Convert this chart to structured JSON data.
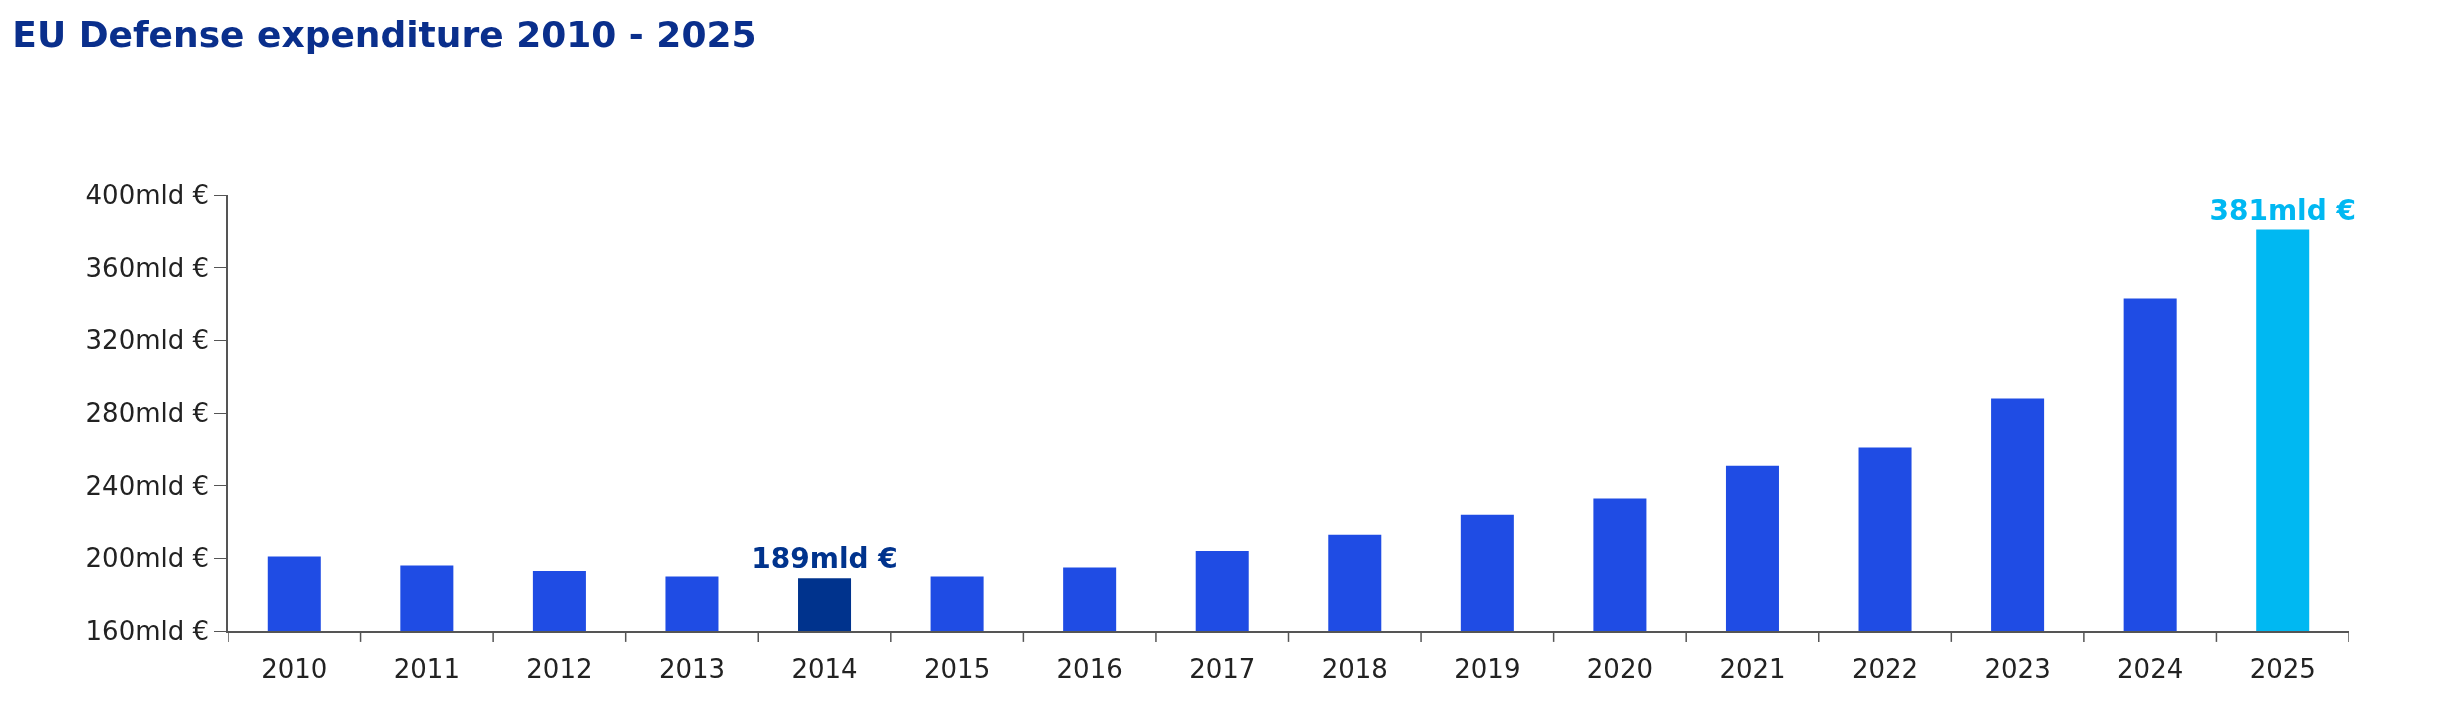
{
  "chart_data": {
    "type": "bar",
    "title": "EU Defense expenditure 2010 - 2025",
    "categories": [
      "2010",
      "2011",
      "2012",
      "2013",
      "2014",
      "2015",
      "2016",
      "2017",
      "2018",
      "2019",
      "2020",
      "2021",
      "2022",
      "2023",
      "2024",
      "2025"
    ],
    "values": [
      201,
      196,
      193,
      190,
      189,
      190,
      195,
      204,
      213,
      224,
      233,
      251,
      261,
      288,
      343,
      381
    ],
    "colors": [
      "#1f4ce4",
      "#1f4ce4",
      "#1f4ce4",
      "#1f4ce4",
      "#00338d",
      "#1f4ce4",
      "#1f4ce4",
      "#1f4ce4",
      "#1f4ce4",
      "#1f4ce4",
      "#1f4ce4",
      "#1f4ce4",
      "#1f4ce4",
      "#1f4ce4",
      "#1f4ce4",
      "#00b8f2"
    ],
    "value_labels": [
      null,
      null,
      null,
      null,
      "189mld €",
      null,
      null,
      null,
      null,
      null,
      null,
      null,
      null,
      null,
      null,
      "381mld €"
    ],
    "ylim": [
      160,
      400
    ],
    "yticks": [
      {
        "value": 160,
        "label": "160mld €"
      },
      {
        "value": 200,
        "label": "200mld €"
      },
      {
        "value": 240,
        "label": "240mld €"
      },
      {
        "value": 280,
        "label": "280mld €"
      },
      {
        "value": 320,
        "label": "320mld €"
      },
      {
        "value": 360,
        "label": "360mld €"
      },
      {
        "value": 400,
        "label": "400mld €"
      }
    ],
    "grid": false
  }
}
